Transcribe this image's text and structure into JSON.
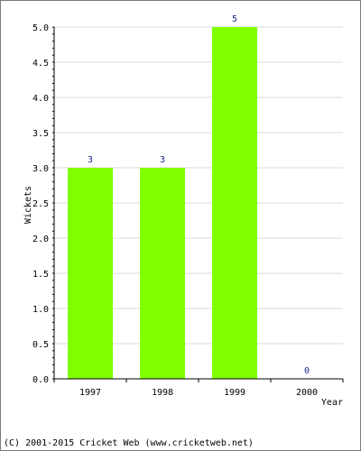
{
  "chart_data": {
    "type": "bar",
    "categories": [
      "1997",
      "1998",
      "1999",
      "2000"
    ],
    "series": [
      {
        "values": [
          3,
          3,
          5,
          0
        ]
      }
    ],
    "data_labels": [
      "3",
      "3",
      "5",
      "0"
    ],
    "ylabel": "Wickets",
    "xlabel": "Year",
    "ylim": [
      0,
      5
    ],
    "yticks": [
      "0.0",
      "0.5",
      "1.0",
      "1.5",
      "2.0",
      "2.5",
      "3.0",
      "3.5",
      "4.0",
      "4.5",
      "5.0"
    ],
    "grid": "horizontal",
    "colors": {
      "bar": "#80ff00",
      "data_label": "#1c2a8c",
      "grid": "#d9d9d9",
      "axis": "#000000"
    }
  },
  "footer": "(C) 2001-2015 Cricket Web (www.cricketweb.net)"
}
